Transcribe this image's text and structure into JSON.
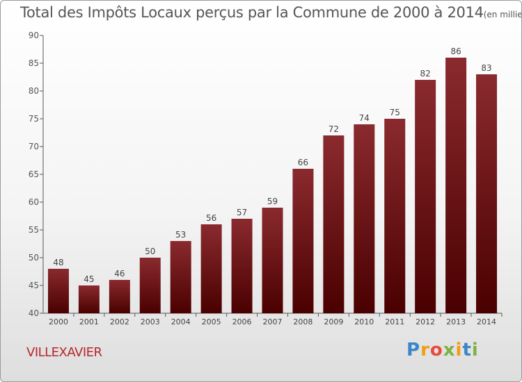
{
  "title": "Total des Impôts Locaux perçus par la Commune de 2000 à 2014",
  "unit": "(en milliers d'€)",
  "commune": "VILLEXAVIER",
  "brand": {
    "letters": [
      "P",
      "r",
      "o",
      "x",
      "i",
      "t",
      "i"
    ],
    "colors": [
      "#3b86c6",
      "#f39c12",
      "#e74c3c",
      "#7cb342",
      "#f39c12",
      "#3b86c6",
      "#7cb342"
    ]
  },
  "colors": {
    "bar_top": "#8a2a2e",
    "bar_bottom": "#4a0000"
  },
  "chart_data": {
    "type": "bar",
    "categories": [
      "2000",
      "2001",
      "2002",
      "2003",
      "2004",
      "2005",
      "2006",
      "2007",
      "2008",
      "2009",
      "2010",
      "2011",
      "2012",
      "2013",
      "2014"
    ],
    "values": [
      48,
      45,
      46,
      50,
      53,
      56,
      57,
      59,
      66,
      72,
      74,
      75,
      82,
      86,
      83
    ],
    "ylim": [
      40,
      90
    ],
    "yticks": [
      40,
      45,
      50,
      55,
      60,
      65,
      70,
      75,
      80,
      85,
      90
    ],
    "grid": false,
    "legend": "none"
  }
}
